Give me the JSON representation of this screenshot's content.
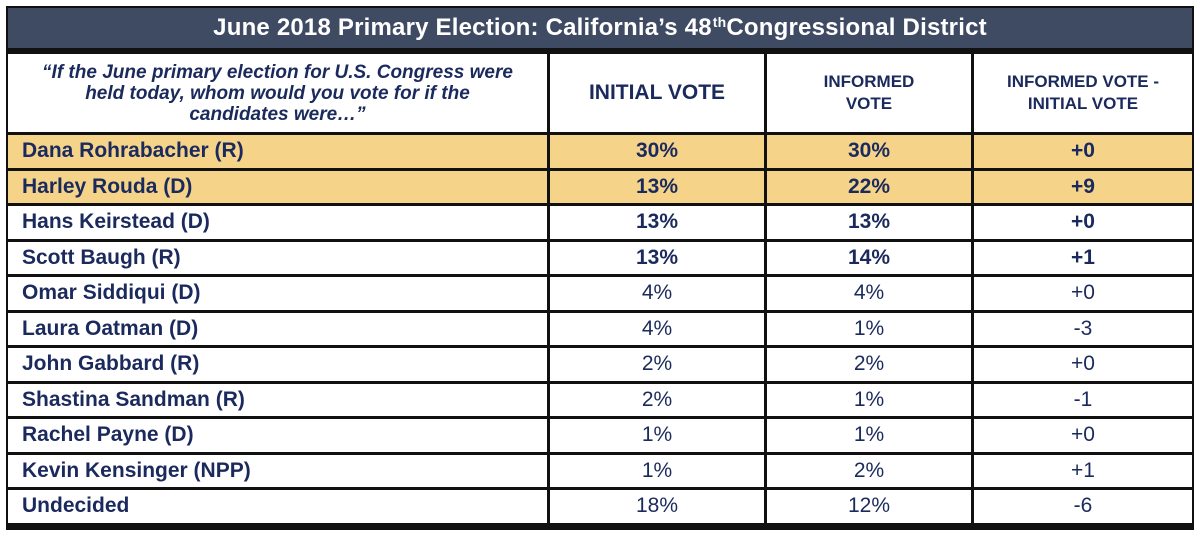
{
  "title": {
    "main": "June 2018 Primary Election: California’s 48",
    "sup": "th",
    "rest": " Congressional District"
  },
  "columns": {
    "question": "“If the June primary election for U.S. Congress were held today, whom would you vote for if the candidates were…”",
    "initial": "INITIAL VOTE",
    "informed": "INFORMED VOTE",
    "diff": "INFORMED VOTE - INITIAL VOTE"
  },
  "colors": {
    "header_bg": "#3f4a63",
    "highlight": "#f5d48a",
    "text": "#1b2a5c",
    "border": "#111111"
  },
  "chart_data": {
    "type": "table",
    "title": "June 2018 Primary Election: California’s 48th Congressional District",
    "columns": [
      "INITIAL VOTE",
      "INFORMED VOTE",
      "INFORMED VOTE - INITIAL VOTE"
    ],
    "rows": [
      {
        "candidate": "Dana Rohrabacher (R)",
        "initial": "30%",
        "informed": "30%",
        "diff": "+0",
        "highlight": true,
        "bold": true
      },
      {
        "candidate": "Harley Rouda (D)",
        "initial": "13%",
        "informed": "22%",
        "diff": "+9",
        "highlight": true,
        "bold": true
      },
      {
        "candidate": "Hans Keirstead (D)",
        "initial": "13%",
        "informed": "13%",
        "diff": "+0",
        "highlight": false,
        "bold": true
      },
      {
        "candidate": "Scott Baugh (R)",
        "initial": "13%",
        "informed": "14%",
        "diff": "+1",
        "highlight": false,
        "bold": true
      },
      {
        "candidate": "Omar Siddiqui (D)",
        "initial": "4%",
        "informed": "4%",
        "diff": "+0",
        "highlight": false,
        "bold": false
      },
      {
        "candidate": "Laura Oatman (D)",
        "initial": "4%",
        "informed": "1%",
        "diff": "-3",
        "highlight": false,
        "bold": false
      },
      {
        "candidate": "John Gabbard (R)",
        "initial": "2%",
        "informed": "2%",
        "diff": "+0",
        "highlight": false,
        "bold": false
      },
      {
        "candidate": "Shastina Sandman (R)",
        "initial": "2%",
        "informed": "1%",
        "diff": "-1",
        "highlight": false,
        "bold": false
      },
      {
        "candidate": "Rachel Payne (D)",
        "initial": "1%",
        "informed": "1%",
        "diff": "+0",
        "highlight": false,
        "bold": false
      },
      {
        "candidate": "Kevin Kensinger (NPP)",
        "initial": "1%",
        "informed": "2%",
        "diff": "+1",
        "highlight": false,
        "bold": false
      },
      {
        "candidate": "Undecided",
        "initial": "18%",
        "informed": "12%",
        "diff": "-6",
        "highlight": false,
        "bold": false
      }
    ]
  }
}
